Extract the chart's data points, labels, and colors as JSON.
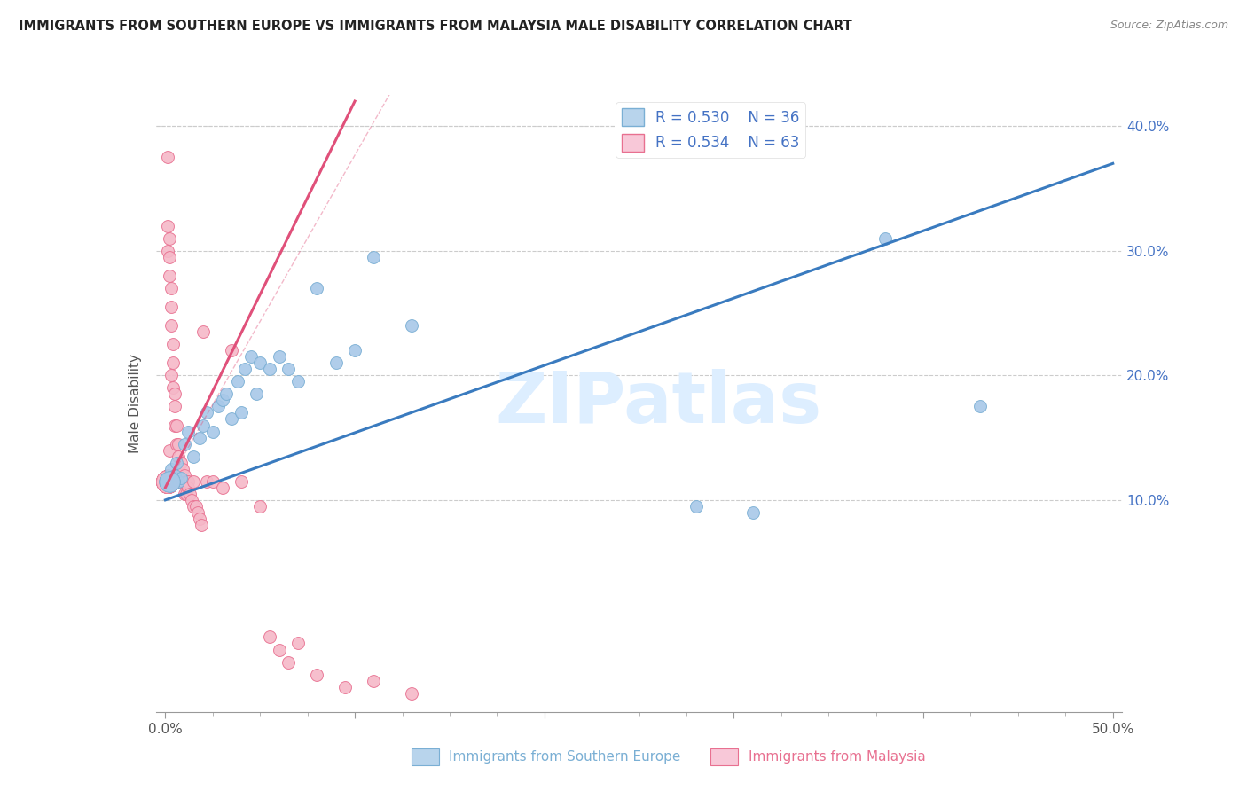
{
  "title": "IMMIGRANTS FROM SOUTHERN EUROPE VS IMMIGRANTS FROM MALAYSIA MALE DISABILITY CORRELATION CHART",
  "source": "Source: ZipAtlas.com",
  "xlabel_blue": "Immigrants from Southern Europe",
  "xlabel_pink": "Immigrants from Malaysia",
  "ylabel": "Male Disability",
  "R_blue": 0.53,
  "N_blue": 36,
  "R_pink": 0.534,
  "N_pink": 63,
  "xlim": [
    -0.005,
    0.505
  ],
  "ylim": [
    -0.07,
    0.425
  ],
  "color_blue": "#a8c8e8",
  "color_blue_edge": "#7aafd4",
  "color_blue_line": "#3a7bbf",
  "color_blue_legend": "#b8d4ec",
  "color_pink": "#f5b8c8",
  "color_pink_edge": "#e87090",
  "color_pink_line": "#e0507a",
  "color_pink_legend": "#f8c8d8",
  "watermark_color": "#ddeeff",
  "blue_scatter_x": [
    0.003,
    0.004,
    0.005,
    0.006,
    0.007,
    0.008,
    0.01,
    0.012,
    0.015,
    0.018,
    0.02,
    0.022,
    0.025,
    0.028,
    0.03,
    0.032,
    0.035,
    0.038,
    0.04,
    0.042,
    0.045,
    0.048,
    0.05,
    0.055,
    0.06,
    0.065,
    0.07,
    0.08,
    0.09,
    0.1,
    0.11,
    0.13,
    0.28,
    0.31,
    0.38,
    0.43
  ],
  "blue_scatter_y": [
    0.125,
    0.115,
    0.12,
    0.13,
    0.115,
    0.118,
    0.145,
    0.155,
    0.135,
    0.15,
    0.16,
    0.17,
    0.155,
    0.175,
    0.18,
    0.185,
    0.165,
    0.195,
    0.17,
    0.205,
    0.215,
    0.185,
    0.21,
    0.205,
    0.215,
    0.205,
    0.195,
    0.27,
    0.21,
    0.22,
    0.295,
    0.24,
    0.095,
    0.09,
    0.31,
    0.175
  ],
  "pink_scatter_x": [
    0.001,
    0.001,
    0.001,
    0.001,
    0.002,
    0.002,
    0.002,
    0.002,
    0.002,
    0.003,
    0.003,
    0.003,
    0.003,
    0.003,
    0.004,
    0.004,
    0.004,
    0.004,
    0.005,
    0.005,
    0.005,
    0.005,
    0.006,
    0.006,
    0.006,
    0.007,
    0.007,
    0.007,
    0.008,
    0.008,
    0.008,
    0.009,
    0.009,
    0.01,
    0.01,
    0.01,
    0.011,
    0.011,
    0.012,
    0.012,
    0.013,
    0.014,
    0.015,
    0.015,
    0.016,
    0.017,
    0.018,
    0.019,
    0.02,
    0.022,
    0.025,
    0.03,
    0.035,
    0.04,
    0.05,
    0.055,
    0.06,
    0.065,
    0.07,
    0.08,
    0.095,
    0.11,
    0.13
  ],
  "pink_scatter_y": [
    0.375,
    0.32,
    0.3,
    0.12,
    0.31,
    0.295,
    0.28,
    0.14,
    0.115,
    0.27,
    0.255,
    0.24,
    0.2,
    0.115,
    0.225,
    0.21,
    0.19,
    0.115,
    0.185,
    0.175,
    0.16,
    0.115,
    0.16,
    0.145,
    0.115,
    0.145,
    0.135,
    0.115,
    0.13,
    0.12,
    0.115,
    0.125,
    0.115,
    0.115,
    0.12,
    0.105,
    0.115,
    0.105,
    0.115,
    0.11,
    0.105,
    0.1,
    0.115,
    0.095,
    0.095,
    0.09,
    0.085,
    0.08,
    0.235,
    0.115,
    0.115,
    0.11,
    0.22,
    0.115,
    0.095,
    -0.01,
    -0.02,
    -0.03,
    -0.015,
    -0.04,
    -0.05,
    -0.045,
    -0.055
  ],
  "blue_line_x": [
    0.0,
    0.5
  ],
  "blue_line_y": [
    0.1,
    0.37
  ],
  "pink_line_x": [
    0.0,
    0.1
  ],
  "pink_line_y": [
    0.11,
    0.42
  ]
}
